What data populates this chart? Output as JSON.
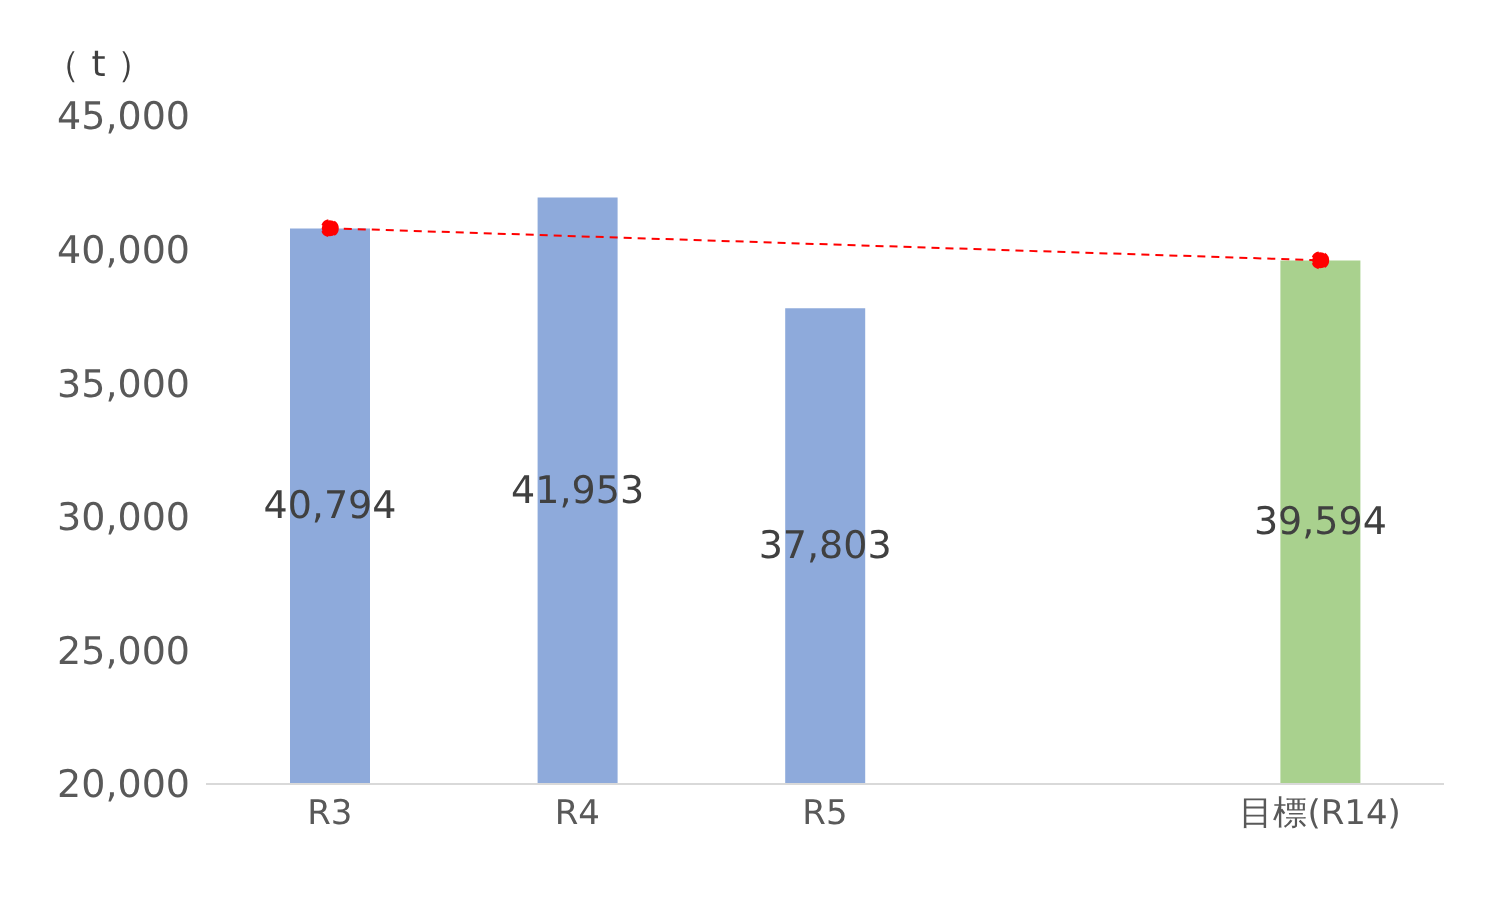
{
  "chart_data": {
    "type": "bar",
    "ylabel": "（ t ）",
    "categories": [
      "R3",
      "R4",
      "R5",
      null,
      "目標(R14)"
    ],
    "series": [
      {
        "colors": [
          "#8eaadb",
          "#8eaadb",
          "#8eaadb",
          null,
          "#a9d18e"
        ],
        "values": [
          40794,
          41953,
          37803,
          null,
          39594
        ],
        "value_labels": [
          "40,794",
          "41,953",
          "37,803",
          null,
          "39,594"
        ]
      },
      {
        "type": "line",
        "color": "#ff0000",
        "line_style": "dashed",
        "marker": "circle",
        "values": [
          40800,
          null,
          null,
          null,
          39600
        ]
      }
    ],
    "ylim": [
      20000,
      45000
    ],
    "yticks": [
      {
        "value": 20000,
        "label": "20,000"
      },
      {
        "value": 25000,
        "label": "25,000"
      },
      {
        "value": 30000,
        "label": "30,000"
      },
      {
        "value": 35000,
        "label": "35,000"
      },
      {
        "value": 40000,
        "label": "40,000"
      },
      {
        "value": 45000,
        "label": "45,000"
      }
    ],
    "grid": false,
    "legend": false
  }
}
